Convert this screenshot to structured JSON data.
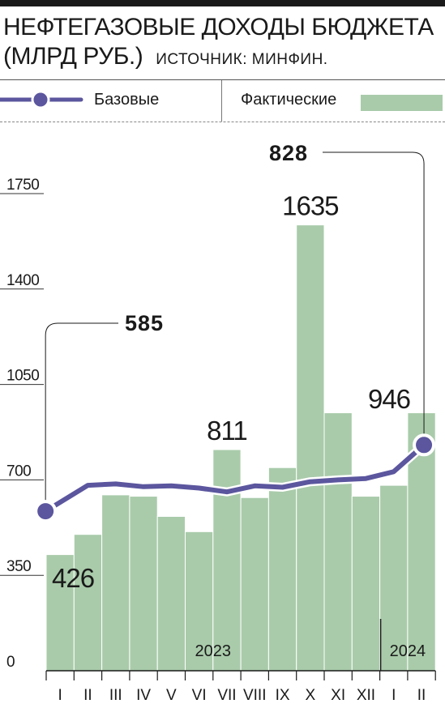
{
  "header": {
    "title_line1": "НЕФТЕГАЗОВЫЕ ДОХОДЫ БЮДЖЕТА",
    "title_line2": "(МЛРД РУБ.)",
    "source": "ИСТОЧНИК: МИНФИН."
  },
  "legend": {
    "line_label": "Базовые",
    "bar_label": "Фактические"
  },
  "colors": {
    "bar": "#a9cbaa",
    "line": "#5b569e",
    "text": "#1a1a1a"
  },
  "chart_data": {
    "type": "bar",
    "title": "НЕФТЕГАЗОВЫЕ ДОХОДЫ БЮДЖЕТА (МЛРД РУБ.)",
    "categories": [
      "I",
      "II",
      "III",
      "IV",
      "V",
      "VI",
      "VII",
      "VIII",
      "IX",
      "X",
      "XI",
      "XII",
      "I",
      "II"
    ],
    "year_labels": [
      "2023",
      "2024"
    ],
    "yticks": [
      0,
      350,
      700,
      1050,
      1400,
      1750
    ],
    "ylim": [
      0,
      1850
    ],
    "series": [
      {
        "name": "Фактические",
        "type": "bar",
        "values": [
          426,
          500,
          645,
          640,
          566,
          510,
          811,
          635,
          745,
          1635,
          946,
          640,
          680,
          946
        ]
      },
      {
        "name": "Базовые",
        "type": "line",
        "values": [
          585,
          680,
          685,
          675,
          678,
          670,
          656,
          678,
          673,
          693,
          700,
          705,
          730,
          828
        ]
      }
    ],
    "data_labels": [
      {
        "series": "Фактические",
        "index": 0,
        "text": "426"
      },
      {
        "series": "Фактические",
        "index": 6,
        "text": "811"
      },
      {
        "series": "Фактические",
        "index": 9,
        "text": "1635"
      },
      {
        "series": "Фактические",
        "index": 13,
        "text": "946"
      },
      {
        "series": "Базовые",
        "index": 0,
        "text": "585"
      },
      {
        "series": "Базовые",
        "index": 13,
        "text": "828"
      }
    ],
    "legend_position": "top"
  }
}
